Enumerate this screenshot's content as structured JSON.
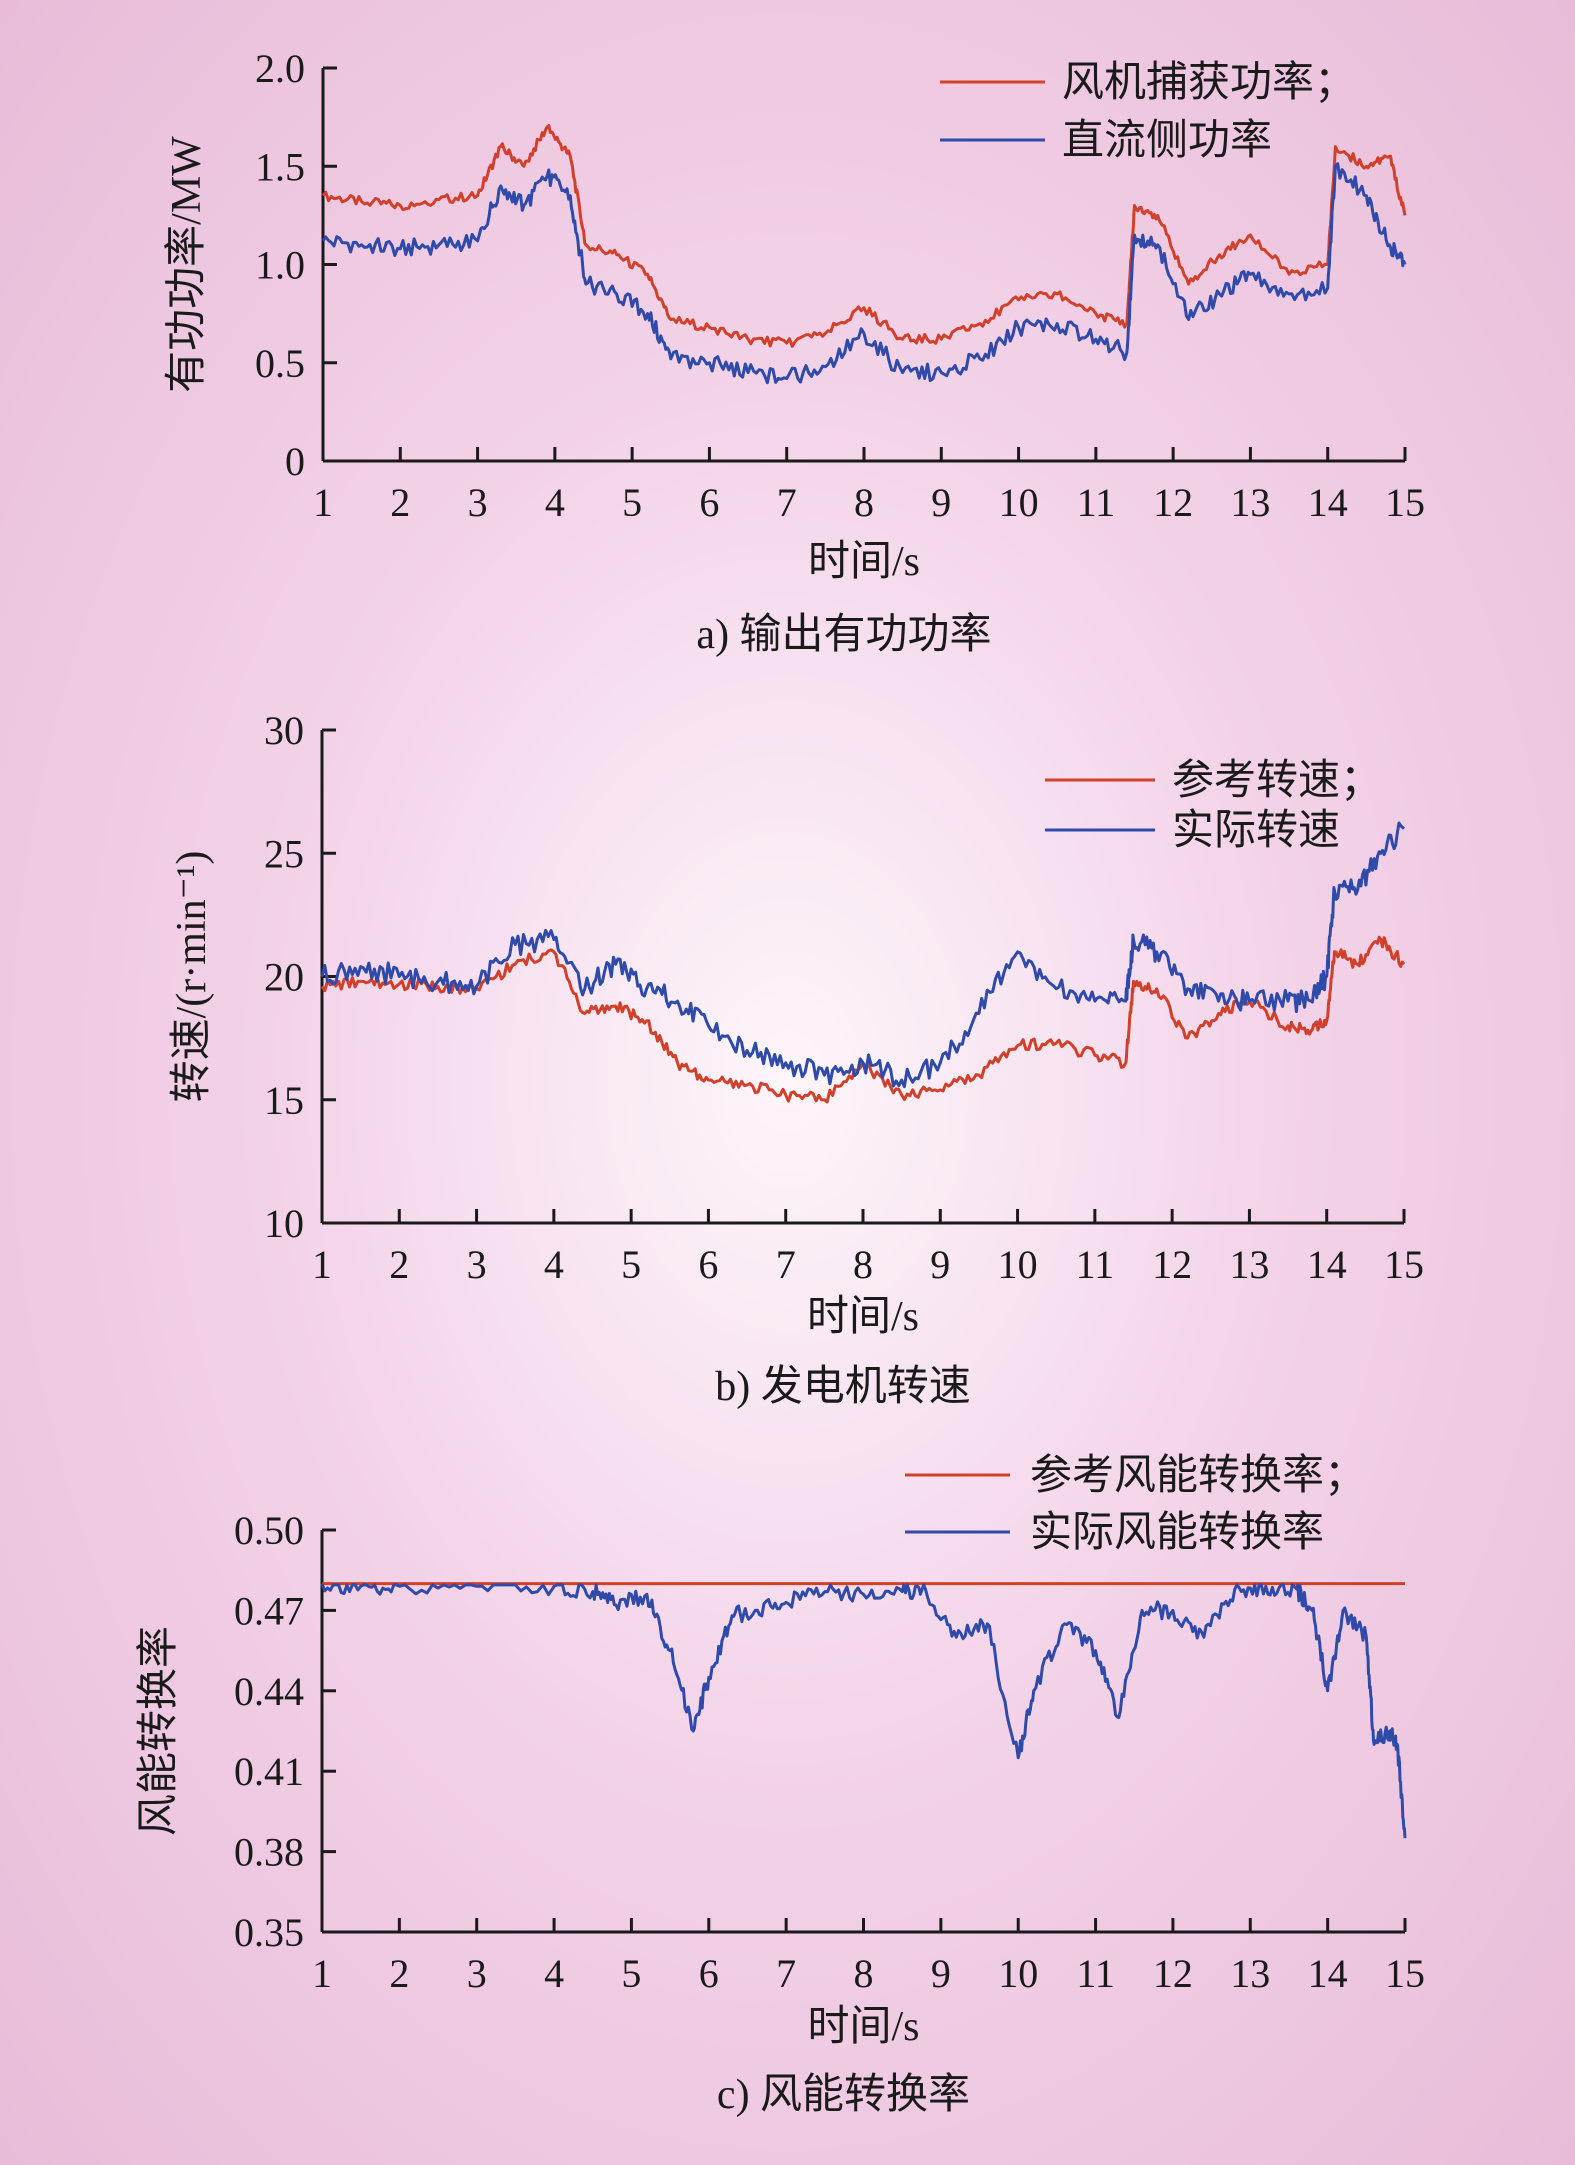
{
  "colors": {
    "reference": "#d0402a",
    "actual": "#2f4aa8",
    "axis": "#1a1a1a"
  },
  "chart_data": [
    {
      "type": "line",
      "caption": "a) 输出有功功率",
      "xlabel": "时间/s",
      "ylabel": "有功功率/MW",
      "xlim": [
        1,
        15
      ],
      "ylim": [
        0,
        2.0
      ],
      "x_ticks": [
        1,
        2,
        3,
        4,
        5,
        6,
        7,
        8,
        9,
        10,
        11,
        12,
        13,
        14,
        15
      ],
      "y_ticks": [
        0,
        0.5,
        1.0,
        1.5,
        2.0
      ],
      "y_tick_labels": [
        "0",
        "0.5",
        "1.0",
        "1.5",
        "2.0"
      ],
      "legend_position": "top-right",
      "x": [
        1,
        1.5,
        2,
        2.5,
        3,
        3.3,
        3.6,
        3.9,
        4.2,
        4.4,
        4.8,
        5.2,
        5.5,
        6,
        6.5,
        7,
        7.5,
        8,
        8.5,
        9,
        9.5,
        10,
        10.5,
        11,
        11.4,
        11.5,
        11.8,
        12.2,
        12.6,
        13,
        13.5,
        14,
        14.1,
        14.5,
        14.8,
        15
      ],
      "series": [
        {
          "name": "风机捕获功率；",
          "role": "reference",
          "values": [
            1.35,
            1.32,
            1.3,
            1.33,
            1.35,
            1.6,
            1.5,
            1.7,
            1.55,
            1.1,
            1.05,
            0.95,
            0.72,
            0.68,
            0.62,
            0.6,
            0.65,
            0.78,
            0.62,
            0.62,
            0.7,
            0.82,
            0.85,
            0.75,
            0.7,
            1.3,
            1.25,
            0.9,
            1.05,
            1.15,
            0.95,
            1.0,
            1.6,
            1.5,
            1.55,
            1.25
          ]
        },
        {
          "name": "直流侧功率",
          "role": "actual",
          "values": [
            1.12,
            1.1,
            1.08,
            1.1,
            1.12,
            1.4,
            1.3,
            1.45,
            1.35,
            0.9,
            0.85,
            0.75,
            0.52,
            0.5,
            0.45,
            0.42,
            0.48,
            0.65,
            0.45,
            0.45,
            0.52,
            0.68,
            0.7,
            0.62,
            0.55,
            1.15,
            1.1,
            0.72,
            0.85,
            0.95,
            0.85,
            0.88,
            1.5,
            1.35,
            1.1,
            1.0
          ]
        }
      ]
    },
    {
      "type": "line",
      "caption": "b) 发电机转速",
      "xlabel": "时间/s",
      "ylabel": "转速/(r·min⁻¹)",
      "xlim": [
        1,
        15
      ],
      "ylim": [
        10,
        30
      ],
      "x_ticks": [
        1,
        2,
        3,
        4,
        5,
        6,
        7,
        8,
        9,
        10,
        11,
        12,
        13,
        14,
        15
      ],
      "y_ticks": [
        10,
        15,
        20,
        25,
        30
      ],
      "y_tick_labels": [
        "10",
        "15",
        "20",
        "25",
        "30"
      ],
      "legend_position": "top-right",
      "x": [
        1,
        1.5,
        2,
        2.5,
        3,
        3.5,
        4,
        4.4,
        4.8,
        5.2,
        5.6,
        6,
        6.5,
        7,
        7.5,
        8,
        8.5,
        9,
        9.5,
        10,
        10.5,
        11,
        11.4,
        11.5,
        11.8,
        12.2,
        12.6,
        13,
        13.5,
        13.8,
        14,
        14.1,
        14.4,
        14.7,
        15
      ],
      "series": [
        {
          "name": "参考转速；",
          "role": "reference",
          "values": [
            19.6,
            19.8,
            19.7,
            19.6,
            19.5,
            20.5,
            21,
            18.5,
            18.8,
            18.2,
            16.5,
            15.8,
            15.6,
            15.2,
            15.0,
            16.5,
            15.2,
            15.4,
            16.0,
            17.2,
            17.3,
            16.8,
            16.5,
            19.8,
            19.5,
            17.5,
            18.5,
            19.0,
            18.0,
            17.8,
            18.2,
            21.0,
            20.5,
            21.5,
            20.5
          ]
        },
        {
          "name": "实际转速",
          "role": "actual",
          "values": [
            20.0,
            20.4,
            20.0,
            19.8,
            19.6,
            21.3,
            21.5,
            19.5,
            20.5,
            19.5,
            19.0,
            18.0,
            17.0,
            16.5,
            16.0,
            16.5,
            15.8,
            16.5,
            18.5,
            21.0,
            19.5,
            19.0,
            19.0,
            21.5,
            21.0,
            19.5,
            19.0,
            19.0,
            19.0,
            19.0,
            20.0,
            23.5,
            23.5,
            25.0,
            26.0
          ]
        }
      ]
    },
    {
      "type": "line",
      "caption": "c) 风能转换率",
      "xlabel": "时间/s",
      "ylabel": "风能转换率",
      "xlim": [
        1,
        15
      ],
      "ylim": [
        0.35,
        0.5
      ],
      "x_ticks": [
        1,
        2,
        3,
        4,
        5,
        6,
        7,
        8,
        9,
        10,
        11,
        12,
        13,
        14,
        15
      ],
      "y_ticks": [
        0.35,
        0.38,
        0.41,
        0.44,
        0.47,
        0.5
      ],
      "y_tick_labels": [
        "0.35",
        "0.38",
        "0.41",
        "0.44",
        "0.47",
        "0.50"
      ],
      "legend_position": "top-right",
      "x": [
        1,
        1.5,
        2,
        3,
        4,
        4.5,
        4.8,
        5.2,
        5.5,
        5.8,
        6,
        6.3,
        6.6,
        7,
        7.5,
        8,
        8.5,
        8.8,
        9.2,
        9.6,
        10,
        10.2,
        10.6,
        11,
        11.3,
        11.6,
        12,
        12.4,
        12.8,
        13.2,
        13.6,
        13.8,
        14,
        14.2,
        14.5,
        14.6,
        14.8,
        14.9,
        15
      ],
      "series": [
        {
          "name": "参考风能转换率；",
          "role": "reference",
          "values": [
            0.48,
            0.48,
            0.48,
            0.48,
            0.48,
            0.48,
            0.48,
            0.48,
            0.48,
            0.48,
            0.48,
            0.48,
            0.48,
            0.48,
            0.48,
            0.48,
            0.48,
            0.48,
            0.48,
            0.48,
            0.48,
            0.48,
            0.48,
            0.48,
            0.48,
            0.48,
            0.48,
            0.48,
            0.48,
            0.48,
            0.48,
            0.48,
            0.48,
            0.48,
            0.48,
            0.48,
            0.48,
            0.48,
            0.48
          ]
        },
        {
          "name": "实际风能转换率",
          "role": "actual",
          "values": [
            0.48,
            0.479,
            0.479,
            0.479,
            0.479,
            0.477,
            0.472,
            0.476,
            0.455,
            0.425,
            0.445,
            0.468,
            0.47,
            0.473,
            0.477,
            0.476,
            0.477,
            0.478,
            0.46,
            0.465,
            0.415,
            0.44,
            0.465,
            0.455,
            0.43,
            0.47,
            0.47,
            0.46,
            0.478,
            0.479,
            0.478,
            0.47,
            0.44,
            0.47,
            0.46,
            0.42,
            0.425,
            0.42,
            0.385
          ]
        }
      ]
    }
  ]
}
